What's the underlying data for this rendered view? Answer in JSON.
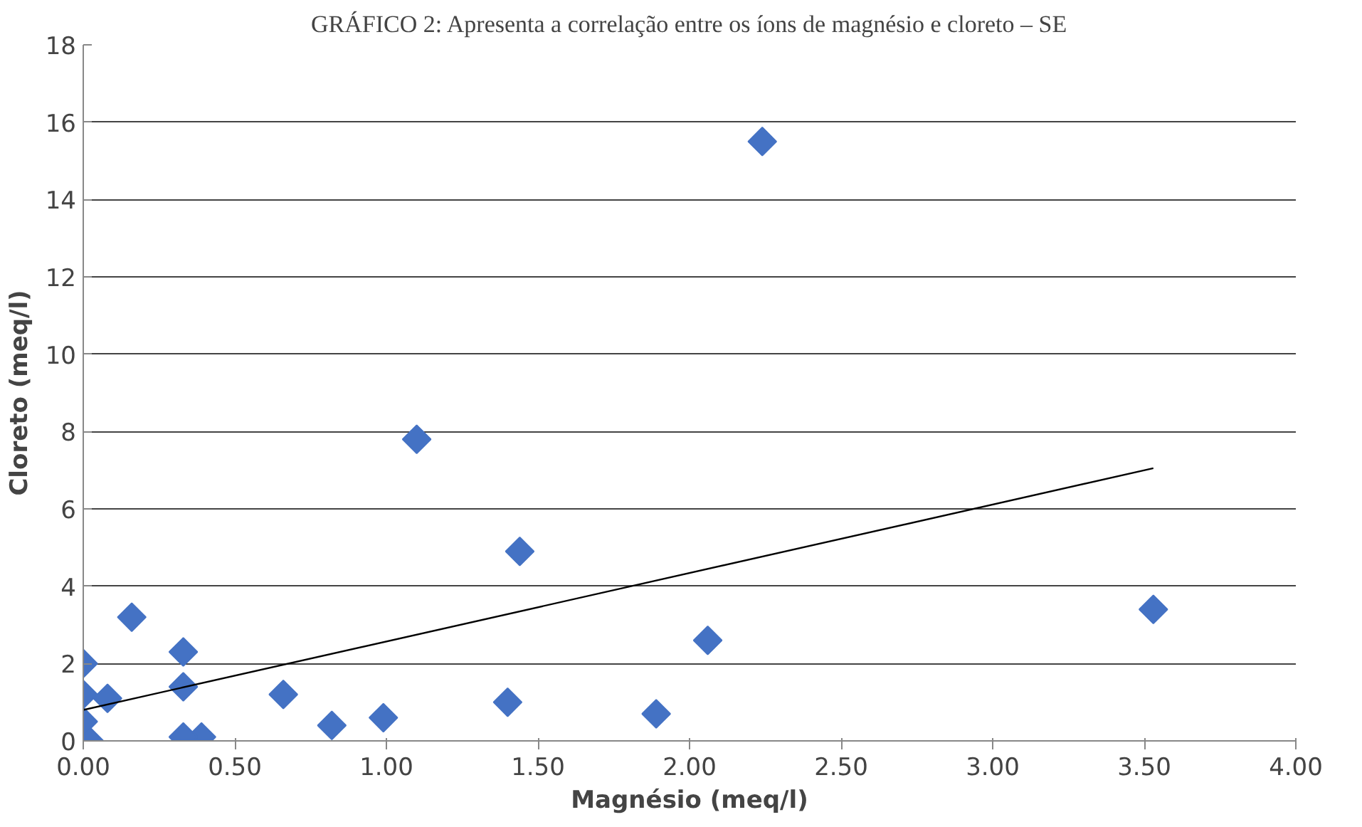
{
  "chart_data": {
    "type": "scatter",
    "title": "GRÁFICO 2: Apresenta a correlação entre os íons de magnésio e cloreto – SE",
    "xlabel": "Magnésio (meq/l)",
    "ylabel": "Cloreto (meq/l)",
    "series": [
      {
        "color": "#4472c4",
        "marker": "diamond",
        "x": [
          2.24,
          1.1,
          1.44,
          3.53,
          2.06,
          1.4,
          1.89,
          0.99,
          0.82,
          0.66,
          0.39,
          0.33,
          0.33,
          0.33,
          0.16,
          0.08,
          0.02,
          0,
          0,
          0
        ],
        "values": [
          15.5,
          7.8,
          4.9,
          3.4,
          2.6,
          1.0,
          0.7,
          0.6,
          0.4,
          1.2,
          0.1,
          0.1,
          1.4,
          2.3,
          3.2,
          1.1,
          0.0,
          2.0,
          1.2,
          0.5
        ]
      },
      {
        "type": "line",
        "color": "#000000",
        "x": [
          0,
          3.53
        ],
        "values": [
          0.8,
          7.05
        ]
      }
    ],
    "xlim": [
      0,
      4
    ],
    "xticks": [
      {
        "value": 0,
        "label": "0.00"
      },
      {
        "value": 0.5,
        "label": "0.50"
      },
      {
        "value": 1,
        "label": "1.00"
      },
      {
        "value": 1.5,
        "label": "1.50"
      },
      {
        "value": 2,
        "label": "2.00"
      },
      {
        "value": 2.5,
        "label": "2.50"
      },
      {
        "value": 3,
        "label": "3.00"
      },
      {
        "value": 3.5,
        "label": "3.50"
      },
      {
        "value": 4,
        "label": "4.00"
      }
    ],
    "ylim": [
      0,
      18
    ],
    "yticks": [
      0,
      2,
      4,
      6,
      8,
      10,
      12,
      14,
      16,
      18
    ],
    "grid": "y"
  }
}
